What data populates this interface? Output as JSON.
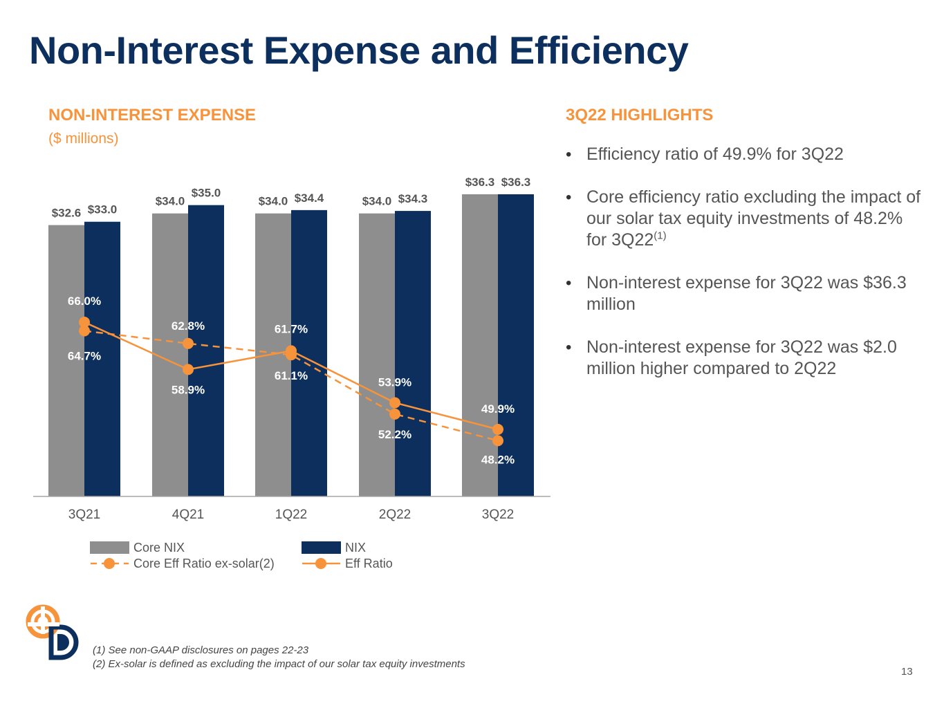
{
  "slide": {
    "title": "Non-Interest Expense and Efficiency",
    "page_number": "13"
  },
  "chart_section": {
    "heading": "NON-INTEREST EXPENSE",
    "subheading": "($ millions)"
  },
  "highlights": {
    "heading": "3Q22 HIGHLIGHTS",
    "items": [
      {
        "text": "Efficiency ratio of 49.9% for 3Q22",
        "sup": ""
      },
      {
        "text": "Core efficiency ratio excluding the impact of our solar tax equity investments of 48.2% for 3Q22",
        "sup": "(1)"
      },
      {
        "text": "Non-interest expense for 3Q22 was $36.3 million",
        "sup": ""
      },
      {
        "text": "Non-interest expense for 3Q22 was $2.0 million higher compared to 2Q22",
        "sup": ""
      }
    ]
  },
  "footnotes": [
    "(1) See non-GAAP disclosures on pages 22-23",
    "(2) Ex-solar is defined as excluding the impact of our solar tax equity investments"
  ],
  "colors": {
    "title": "#0d2f5e",
    "accent": "#f7933a",
    "core_nix_bar": "#8e8e8e",
    "nix_bar": "#0d2f5e",
    "text": "#555555"
  },
  "chart_data": {
    "type": "bar",
    "categories": [
      "3Q21",
      "4Q21",
      "1Q22",
      "2Q22",
      "3Q22"
    ],
    "series": [
      {
        "name": "Core NIX",
        "type": "bar",
        "values": [
          32.6,
          34.0,
          34.0,
          34.0,
          36.3
        ],
        "labels": [
          "$32.6",
          "$34.0",
          "$34.0",
          "$34.0",
          "$36.3"
        ]
      },
      {
        "name": "NIX",
        "type": "bar",
        "values": [
          33.0,
          35.0,
          34.4,
          34.3,
          36.3
        ],
        "labels": [
          "$33.0",
          "$35.0",
          "$34.4",
          "$34.3",
          "$36.3"
        ]
      },
      {
        "name": "Core Eff Ratio ex-solar(2)",
        "type": "line",
        "style": "dashed",
        "values": [
          64.7,
          62.8,
          61.1,
          52.2,
          48.2
        ],
        "labels": [
          "64.7%",
          "62.8%",
          "61.1%",
          "52.2%",
          "48.2%"
        ]
      },
      {
        "name": "Eff Ratio",
        "type": "line",
        "style": "solid",
        "values": [
          66.0,
          58.9,
          61.7,
          53.9,
          49.9
        ],
        "labels": [
          "66.0%",
          "58.9%",
          "61.7%",
          "53.9%",
          "49.9%"
        ]
      }
    ],
    "bar_axis_range": [
      0,
      38
    ],
    "ratio_axis_range": [
      30,
      70
    ],
    "grid": false,
    "legend_position": "bottom"
  }
}
